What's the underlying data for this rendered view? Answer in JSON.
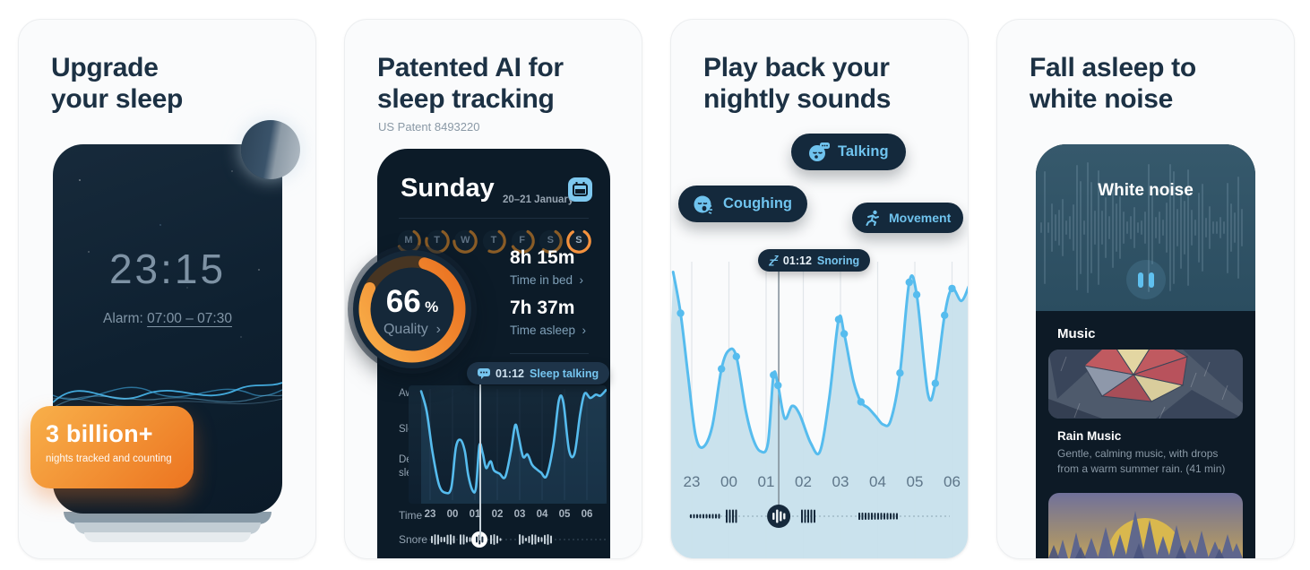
{
  "colors": {
    "accent_orange": "#ED7A24",
    "accent_blue": "#6FC3EE",
    "title_navy": "#1C3144",
    "phone_dark": "#0C1B28",
    "chart_line": "#56BCEE",
    "chart_fill": "#C7E0EC"
  },
  "chevron": "›",
  "cards": {
    "upgrade": {
      "title": "Upgrade\nyour sleep",
      "clock": "23:15",
      "alarm_label": "Alarm:",
      "alarm_time": "07:00 – 07:30",
      "badge_title": "3 billion+",
      "badge_subtitle": "nights tracked and counting"
    },
    "patented": {
      "title": "Patented AI for\nsleep tracking",
      "patent": "US Patent 8493220",
      "day": "Sunday",
      "date_range": "20–21 January",
      "week_rings": [
        {
          "day": "M",
          "fill": 0.58
        },
        {
          "day": "T",
          "fill": 0.7
        },
        {
          "day": "W",
          "fill": 0.66
        },
        {
          "day": "T",
          "fill": 0.48
        },
        {
          "day": "F",
          "fill": 0.58
        },
        {
          "day": "S",
          "fill": 0.52
        },
        {
          "day": "S",
          "fill": 0.82,
          "highlight": true
        }
      ],
      "quality": {
        "value": "66",
        "unit": "%",
        "label": "Quality"
      },
      "stats": [
        {
          "value": "8h 15m",
          "label": "Time in bed"
        },
        {
          "value": "7h 37m",
          "label": "Time asleep"
        }
      ],
      "event_badge": {
        "time": "01:12",
        "label": "Sleep talking"
      },
      "time_label": "Time",
      "snore_label": "Snore"
    },
    "playback": {
      "title": "Play back your\nnightly sounds",
      "tags": [
        "Talking",
        "Coughing",
        "Movement"
      ],
      "tooltip": {
        "time": "01:12",
        "label": "Snoring"
      }
    },
    "white_noise": {
      "title": "Fall asleep to\nwhite noise",
      "player_title": "White noise",
      "section": "Music",
      "track_title": "Rain Music",
      "track_desc": "Gentle, calming music, with drops from a warm summer rain. (41 min)"
    }
  },
  "chart_data": [
    {
      "id": "sleep-stages",
      "type": "line",
      "x_ticks": [
        "23",
        "00",
        "01",
        "02",
        "03",
        "04",
        "05",
        "06"
      ],
      "y_labels": [
        "Awake",
        "Sleep",
        "Deep\nsleep"
      ],
      "x_unit": "hours from 23:00",
      "y_note": "100 = awake, 0 = deep sleep",
      "points": [
        [
          -0.4,
          98
        ],
        [
          -0.15,
          80
        ],
        [
          0.1,
          45
        ],
        [
          0.4,
          15
        ],
        [
          0.7,
          8
        ],
        [
          0.95,
          13
        ],
        [
          1.15,
          48
        ],
        [
          1.35,
          55
        ],
        [
          1.55,
          45
        ],
        [
          1.7,
          24
        ],
        [
          1.9,
          10
        ],
        [
          2.05,
          13
        ],
        [
          2.2,
          50
        ],
        [
          2.35,
          43
        ],
        [
          2.5,
          30
        ],
        [
          2.7,
          36
        ],
        [
          2.85,
          28
        ],
        [
          3.1,
          25
        ],
        [
          3.35,
          22
        ],
        [
          3.6,
          44
        ],
        [
          3.8,
          68
        ],
        [
          3.95,
          58
        ],
        [
          4.15,
          40
        ],
        [
          4.35,
          42
        ],
        [
          4.55,
          33
        ],
        [
          4.75,
          29
        ],
        [
          4.95,
          26
        ],
        [
          5.2,
          23
        ],
        [
          5.5,
          50
        ],
        [
          5.75,
          90
        ],
        [
          5.95,
          88
        ],
        [
          6.2,
          46
        ],
        [
          6.45,
          43
        ],
        [
          6.7,
          78
        ],
        [
          6.9,
          96
        ],
        [
          7.15,
          92
        ],
        [
          7.4,
          95
        ],
        [
          7.6,
          94
        ],
        [
          7.85,
          99
        ]
      ],
      "marker_t": 2.2
    },
    {
      "id": "night-sounds",
      "type": "area",
      "x_ticks": [
        "23",
        "00",
        "01",
        "02",
        "03",
        "04",
        "05",
        "06"
      ],
      "x_unit": "hours from 23:00",
      "y_note": "relative sound level 0-100",
      "points": [
        [
          -0.5,
          95
        ],
        [
          -0.3,
          75
        ],
        [
          -0.1,
          45
        ],
        [
          0.1,
          16
        ],
        [
          0.3,
          10
        ],
        [
          0.55,
          20
        ],
        [
          0.8,
          48
        ],
        [
          1.0,
          57
        ],
        [
          1.2,
          54
        ],
        [
          1.45,
          28
        ],
        [
          1.65,
          14
        ],
        [
          1.85,
          8
        ],
        [
          2.05,
          12
        ],
        [
          2.2,
          45
        ],
        [
          2.32,
          40
        ],
        [
          2.5,
          24
        ],
        [
          2.7,
          30
        ],
        [
          2.9,
          26
        ],
        [
          3.2,
          12
        ],
        [
          3.45,
          8
        ],
        [
          3.7,
          34
        ],
        [
          3.95,
          72
        ],
        [
          4.1,
          65
        ],
        [
          4.35,
          42
        ],
        [
          4.55,
          32
        ],
        [
          4.75,
          29
        ],
        [
          4.95,
          25
        ],
        [
          5.15,
          21
        ],
        [
          5.35,
          23
        ],
        [
          5.6,
          46
        ],
        [
          5.85,
          90
        ],
        [
          6.05,
          84
        ],
        [
          6.35,
          36
        ],
        [
          6.55,
          41
        ],
        [
          6.8,
          74
        ],
        [
          7.0,
          87
        ],
        [
          7.25,
          81
        ],
        [
          7.45,
          88
        ]
      ],
      "dot_idx": [
        1,
        6,
        8,
        13,
        14,
        21,
        22,
        24,
        29,
        30,
        31,
        33,
        34,
        35
      ],
      "marker": {
        "t": 2.2,
        "time": "01:12",
        "label": "Snoring"
      }
    }
  ]
}
